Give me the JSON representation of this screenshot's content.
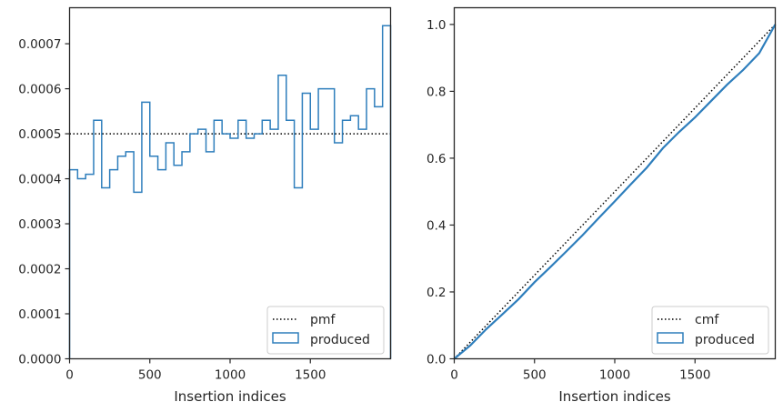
{
  "chart_data": [
    {
      "type": "step",
      "xlabel": "Insertion indices",
      "ylabel": "",
      "xlim": [
        0,
        2000
      ],
      "ylim": [
        0,
        0.00078
      ],
      "xticks": [
        0,
        500,
        1000,
        1500
      ],
      "yticks": [
        0.0,
        0.0001,
        0.0002,
        0.0003,
        0.0004,
        0.0005,
        0.0006,
        0.0007
      ],
      "ytick_labels": [
        "0.0000",
        "0.0001",
        "0.0002",
        "0.0003",
        "0.0004",
        "0.0005",
        "0.0006",
        "0.0007"
      ],
      "grid": false,
      "legend_position": "bottom-right",
      "legend": [
        "pmf",
        "produced"
      ],
      "series": [
        {
          "name": "pmf",
          "style": "dotted",
          "color": "#000000",
          "x": [
            0,
            2000
          ],
          "values": [
            0.0005,
            0.0005
          ]
        },
        {
          "name": "produced",
          "style": "histogram-step",
          "color": "#2e7ebc",
          "bin_edges": [
            0,
            50,
            100,
            150,
            200,
            250,
            300,
            350,
            400,
            450,
            500,
            550,
            600,
            650,
            700,
            750,
            800,
            850,
            900,
            950,
            1000,
            1050,
            1100,
            1150,
            1200,
            1250,
            1300,
            1350,
            1400,
            1450,
            1500,
            1550,
            1600,
            1650,
            1700,
            1750,
            1800,
            1850,
            1900,
            1950,
            2000
          ],
          "values": [
            0.00042,
            0.0004,
            0.00041,
            0.00053,
            0.00038,
            0.00042,
            0.00045,
            0.00046,
            0.00037,
            0.00057,
            0.00045,
            0.00042,
            0.00048,
            0.00043,
            0.00046,
            0.0005,
            0.00051,
            0.00046,
            0.00053,
            0.0005,
            0.00049,
            0.00053,
            0.00049,
            0.0005,
            0.00053,
            0.00051,
            0.00063,
            0.00053,
            0.00038,
            0.00059,
            0.00051,
            0.0006,
            0.0006,
            0.00048,
            0.00053,
            0.00054,
            0.00051,
            0.0006,
            0.00056,
            0.00074
          ]
        }
      ]
    },
    {
      "type": "line",
      "xlabel": "Insertion indices",
      "ylabel": "",
      "xlim": [
        0,
        2000
      ],
      "ylim": [
        0,
        1.05
      ],
      "xticks": [
        0,
        500,
        1000,
        1500
      ],
      "yticks": [
        0.0,
        0.2,
        0.4,
        0.6,
        0.8,
        1.0
      ],
      "ytick_labels": [
        "0.0",
        "0.2",
        "0.4",
        "0.6",
        "0.8",
        "1.0"
      ],
      "grid": false,
      "legend_position": "bottom-right",
      "legend": [
        "cmf",
        "produced"
      ],
      "series": [
        {
          "name": "cmf",
          "style": "dotted",
          "color": "#000000",
          "x": [
            0,
            2000
          ],
          "values": [
            0,
            1.0
          ]
        },
        {
          "name": "produced",
          "style": "step-line",
          "color": "#2e7ebc",
          "x": [
            0,
            100,
            200,
            300,
            400,
            500,
            600,
            700,
            800,
            900,
            1000,
            1100,
            1200,
            1300,
            1400,
            1500,
            1600,
            1700,
            1800,
            1900,
            2000
          ],
          "values": [
            0,
            0.04,
            0.089,
            0.133,
            0.178,
            0.229,
            0.275,
            0.322,
            0.37,
            0.421,
            0.471,
            0.522,
            0.572,
            0.63,
            0.678,
            0.722,
            0.771,
            0.82,
            0.864,
            0.914,
            1.0
          ]
        }
      ]
    }
  ]
}
